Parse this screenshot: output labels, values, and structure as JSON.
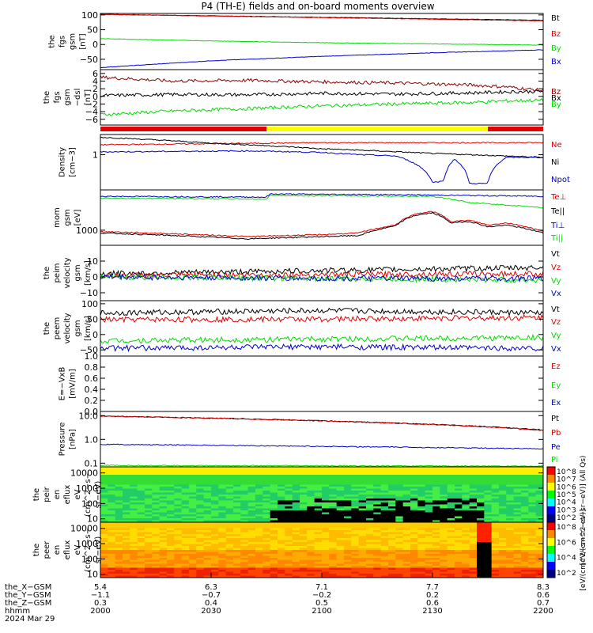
{
  "title": "P4 (TH-E) fields and on-board moments overview",
  "colors": {
    "black": "#000000",
    "red": "#e00000",
    "darkred": "#8b0000",
    "green": "#00dd00",
    "blue": "#0000cc",
    "yellow": "#ffff00"
  },
  "chart_data": [
    {
      "id": "fgs-gsm",
      "type": "line",
      "ylabel": [
        "the",
        "fgs",
        "gsm",
        "[nT]"
      ],
      "ylim": [
        -85,
        105
      ],
      "yticks": [
        {
          "v": 100,
          "t": "100"
        },
        {
          "v": 50,
          "t": "50"
        },
        {
          "v": 0,
          "t": "0"
        },
        {
          "v": -50,
          "t": "−50"
        }
      ],
      "series": [
        {
          "name": "Bt",
          "color": "#000000",
          "x": [
            0,
            120
          ],
          "y": [
            102,
            82
          ]
        },
        {
          "name": "Bz",
          "color": "#e00000",
          "x": [
            0,
            120
          ],
          "y": [
            102,
            80
          ]
        },
        {
          "name": "By",
          "color": "#00dd00",
          "x": [
            0,
            30,
            60,
            90,
            120
          ],
          "y": [
            20,
            12,
            6,
            2,
            -2
          ]
        },
        {
          "name": "Bx",
          "color": "#0000cc",
          "x": [
            0,
            30,
            60,
            90,
            120
          ],
          "y": [
            -78,
            -55,
            -40,
            -28,
            -18
          ]
        }
      ]
    },
    {
      "id": "fgs-dsl",
      "type": "line",
      "ylabel": [
        "the",
        "fgs",
        "gsm",
        "−dsl",
        "[nT]"
      ],
      "ylim": [
        -7.5,
        7
      ],
      "yticks": [
        {
          "v": 6,
          "t": "6"
        },
        {
          "v": 4,
          "t": "4"
        },
        {
          "v": 2,
          "t": "2"
        },
        {
          "v": 0,
          "t": "0"
        },
        {
          "v": -2,
          "t": "−2"
        },
        {
          "v": -4,
          "t": "−4"
        },
        {
          "v": -6,
          "t": "−6"
        }
      ],
      "series": [
        {
          "name": "Bz",
          "color": "#8b0000",
          "x": [
            0,
            20,
            40,
            60,
            80,
            100,
            110,
            120
          ],
          "y": [
            5,
            4,
            4.2,
            3.8,
            3.5,
            3,
            2.5,
            1.5
          ]
        },
        {
          "name": "Bx",
          "color": "#000000",
          "x": [
            0,
            20,
            40,
            60,
            80,
            100,
            110,
            120
          ],
          "y": [
            0.2,
            0.5,
            0.4,
            0.8,
            0.6,
            0.9,
            1.2,
            1.3
          ]
        },
        {
          "name": "By",
          "color": "#00dd00",
          "x": [
            0,
            20,
            40,
            60,
            80,
            100,
            110,
            120
          ],
          "y": [
            -4.8,
            -3.8,
            -3.2,
            -2.5,
            -2,
            -1.6,
            -1.2,
            -1
          ]
        }
      ]
    },
    {
      "id": "density",
      "type": "line",
      "ylog": true,
      "ylabel": [
        "Density",
        "[cm−3]"
      ],
      "ylim": [
        0.06,
        5
      ],
      "yticks": [
        {
          "v": 1,
          "t": "1"
        }
      ],
      "series": [
        {
          "name": "Ne",
          "color": "#e00000",
          "x": [
            0,
            60,
            120
          ],
          "y": [
            2.2,
            2.6,
            2.6
          ]
        },
        {
          "name": "Ni",
          "color": "#000000",
          "x": [
            0,
            30,
            60,
            90,
            120
          ],
          "y": [
            4,
            2.5,
            1.6,
            1.1,
            0.8
          ]
        },
        {
          "name": "Npot",
          "color": "#0000cc",
          "x": [
            0,
            40,
            60,
            70,
            80,
            90,
            93,
            96,
            100,
            105,
            110,
            120
          ],
          "y": [
            1.25,
            1.35,
            1.2,
            1,
            0.9,
            0.11,
            0.12,
            0.7,
            0.1,
            0.1,
            0.8,
            0.8
          ]
        }
      ]
    },
    {
      "id": "temperature",
      "type": "line",
      "ylog": true,
      "ylabel": [
        "mom",
        "gsm",
        "[eV]"
      ],
      "ylim": [
        300,
        25000
      ],
      "yticks": [
        {
          "v": 1000,
          "t": "1000"
        }
      ],
      "series": [
        {
          "name": "Te⊥",
          "color": "#e00000",
          "x": [
            0,
            40,
            60,
            70,
            80,
            85,
            90,
            95,
            100,
            105,
            110,
            120
          ],
          "y": [
            900,
            600,
            700,
            800,
            1500,
            3500,
            4500,
            2000,
            2200,
            1500,
            1800,
            900
          ]
        },
        {
          "name": "Te||",
          "color": "#000000",
          "x": [
            0,
            40,
            60,
            70,
            80,
            85,
            90,
            95,
            100,
            105,
            110,
            120
          ],
          "y": [
            800,
            500,
            600,
            650,
            1400,
            3200,
            4000,
            1800,
            2000,
            1300,
            1500,
            800
          ]
        },
        {
          "name": "Ti⊥",
          "color": "#0000cc",
          "x": [
            0,
            45,
            46,
            80,
            100,
            120
          ],
          "y": [
            15000,
            14000,
            18000,
            17000,
            16000,
            15000
          ]
        },
        {
          "name": "Ti||",
          "color": "#00dd00",
          "x": [
            0,
            45,
            46,
            90,
            100,
            120
          ],
          "y": [
            13000,
            12000,
            16000,
            15000,
            9000,
            6000
          ]
        }
      ]
    },
    {
      "id": "peim-velocity",
      "type": "line",
      "ylabel": [
        "the",
        "peim",
        "velocity",
        "gsm",
        "[km/s]"
      ],
      "ylim": [
        -15,
        20
      ],
      "yticks": [
        {
          "v": 10,
          "t": "10"
        },
        {
          "v": 0,
          "t": "0"
        },
        {
          "v": -10,
          "t": "−10"
        }
      ],
      "series": [
        {
          "name": "Vt",
          "color": "#000000",
          "x": [
            0,
            60,
            120
          ],
          "y": [
            2,
            4,
            6
          ]
        },
        {
          "name": "Vz",
          "color": "#e00000",
          "x": [
            0,
            60,
            120
          ],
          "y": [
            1,
            1.5,
            2
          ]
        },
        {
          "name": "Vy",
          "color": "#00dd00",
          "x": [
            0,
            60,
            120
          ],
          "y": [
            0,
            -1,
            -2
          ]
        },
        {
          "name": "Vx",
          "color": "#0000cc",
          "x": [
            0,
            60,
            120
          ],
          "y": [
            0,
            -1,
            -1
          ]
        }
      ]
    },
    {
      "id": "peem-velocity",
      "type": "line",
      "ylabel": [
        "the",
        "peem",
        "velocity",
        "gsm",
        "[km/s]"
      ],
      "ylim": [
        -70,
        110
      ],
      "yticks": [
        {
          "v": 100,
          "t": "100"
        },
        {
          "v": 50,
          "t": "50"
        },
        {
          "v": 0,
          "t": "0"
        },
        {
          "v": -50,
          "t": "−50"
        }
      ],
      "series": [
        {
          "name": "Vt",
          "color": "#000000",
          "x": [
            0,
            60,
            120
          ],
          "y": [
            70,
            78,
            70
          ]
        },
        {
          "name": "Vz",
          "color": "#e00000",
          "x": [
            0,
            60,
            120
          ],
          "y": [
            48,
            50,
            55
          ]
        },
        {
          "name": "Vy",
          "color": "#00dd00",
          "x": [
            0,
            60,
            120
          ],
          "y": [
            -20,
            -15,
            -10
          ]
        },
        {
          "name": "Vx",
          "color": "#0000cc",
          "x": [
            0,
            60,
            120
          ],
          "y": [
            -45,
            -40,
            -45
          ]
        }
      ]
    },
    {
      "id": "efield",
      "type": "line",
      "ylabel": [
        "E=−VxB",
        "[mV/m]"
      ],
      "ylim": [
        0,
        1
      ],
      "yticks": [
        {
          "v": 1,
          "t": "1.0"
        },
        {
          "v": 0.8,
          "t": "0.8"
        },
        {
          "v": 0.6,
          "t": "0.6"
        },
        {
          "v": 0.4,
          "t": "0.4"
        },
        {
          "v": 0.2,
          "t": "0.2"
        },
        {
          "v": 0,
          "t": "0.0"
        }
      ],
      "series": [
        {
          "name": "Ez",
          "color": "#e00000",
          "x": [],
          "y": []
        },
        {
          "name": "Ey",
          "color": "#00dd00",
          "x": [],
          "y": []
        },
        {
          "name": "Ex",
          "color": "#0000cc",
          "x": [],
          "y": []
        }
      ]
    },
    {
      "id": "pressure",
      "type": "line",
      "ylog": true,
      "ylabel": [
        "Pressure",
        "[nPa]"
      ],
      "ylim": [
        0.07,
        15
      ],
      "yticks": [
        {
          "v": 10,
          "t": "10.0"
        },
        {
          "v": 1,
          "t": "1.0"
        },
        {
          "v": 0.1,
          "t": "0.1"
        }
      ],
      "series": [
        {
          "name": "Pt",
          "color": "#000000",
          "x": [
            0,
            120
          ],
          "y": [
            9.6,
            2.5
          ]
        },
        {
          "name": "Pb",
          "color": "#e00000",
          "x": [
            0,
            120
          ],
          "y": [
            9.6,
            2.4
          ]
        },
        {
          "name": "Pe",
          "color": "#0000cc",
          "x": [
            0,
            120
          ],
          "y": [
            0.62,
            0.4
          ]
        },
        {
          "name": "Pi",
          "color": "#00dd00",
          "x": [
            0,
            120
          ],
          "y": [
            0.08,
            0.075
          ]
        }
      ]
    },
    {
      "id": "peir-spec",
      "type": "heatmap",
      "ylabel": [
        "the",
        "peir",
        "en",
        "eflux",
        "eV",
        "(cm^2−s−",
        "sr−eV)"
      ],
      "yticks": [
        {
          "v": 10000,
          "t": "10000"
        },
        {
          "v": 1000,
          "t": "1000"
        },
        {
          "v": 100,
          "t": "100"
        },
        {
          "v": 10,
          "t": "10"
        }
      ],
      "ylim": [
        6,
        25000
      ],
      "colorbar_label": "[eV/(cm^2−s−sr−eV)] (All Qs)",
      "colorbar_ticks": [
        "10^8",
        "10^7",
        "10^6",
        "10^5",
        "10^4",
        "10^3",
        "10^2"
      ]
    },
    {
      "id": "peer-spec",
      "type": "heatmap",
      "ylabel": [
        "the",
        "peer",
        "en",
        "eflux",
        "eV",
        "(cm^2−s−",
        "sr−eV)"
      ],
      "yticks": [
        {
          "v": 10000,
          "t": "10000"
        },
        {
          "v": 1000,
          "t": "1000"
        },
        {
          "v": 100,
          "t": "100"
        },
        {
          "v": 10,
          "t": "10"
        }
      ],
      "ylim": [
        6,
        25000
      ],
      "colorbar_label": "[eV/(cm^2−s−sr−eV)]",
      "colorbar_ticks": [
        "10^8",
        "10^6",
        "10^4",
        "10^2"
      ]
    }
  ],
  "mode_bar": [
    {
      "from": 0,
      "to": 45,
      "color": "#e00000"
    },
    {
      "from": 45,
      "to": 105,
      "color": "#ffff00"
    },
    {
      "from": 105,
      "to": 120,
      "color": "#e00000"
    }
  ],
  "xaxis": {
    "range": [
      0,
      120
    ],
    "tick_positions": [
      0,
      30,
      60,
      90,
      120
    ],
    "rows": [
      {
        "label": "the_X−GSM",
        "values": [
          "5.4",
          "6.3",
          "7.1",
          "7.7",
          "8.3"
        ]
      },
      {
        "label": "the_Y−GSM",
        "values": [
          "−1.1",
          "−0.7",
          "−0.2",
          "0.2",
          "0.6"
        ]
      },
      {
        "label": "the_Z−GSM",
        "values": [
          "0.3",
          "0.4",
          "0.5",
          "0.6",
          "0.7"
        ]
      },
      {
        "label": "hhmm",
        "values": [
          "2000",
          "2030",
          "2100",
          "2130",
          "2200"
        ]
      }
    ],
    "date": "2024 Mar 29"
  }
}
